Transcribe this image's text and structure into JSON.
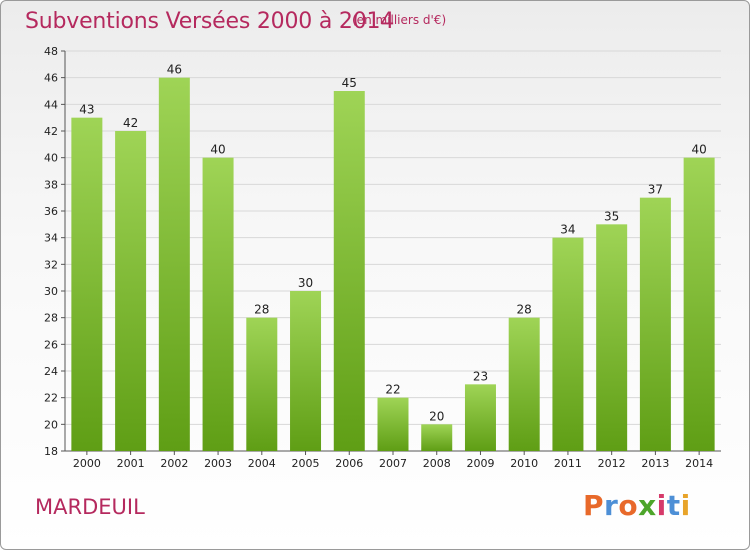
{
  "header": {
    "title": "Subventions Versées 2000 à 2014",
    "unit": "(en milliers d'€)"
  },
  "footer": {
    "commune": "MARDEUIL",
    "brand_letters": [
      "P",
      "r",
      "o",
      "x",
      "i",
      "t",
      "i"
    ]
  },
  "colors": {
    "title": "#b5295e",
    "bar_light": "#9fd456",
    "bar_dark": "#5f9e15",
    "brand": [
      "#e8692a",
      "#4d8fd6",
      "#e8692a",
      "#4da52a",
      "#d63a6a",
      "#4d8fd6",
      "#e8a42a"
    ]
  },
  "chart_data": {
    "type": "bar",
    "title": "Subventions Versées 2000 à 2014",
    "subtitle": "(en milliers d'€)",
    "xlabel": "",
    "ylabel": "",
    "categories": [
      "2000",
      "2001",
      "2002",
      "2003",
      "2004",
      "2005",
      "2006",
      "2007",
      "2008",
      "2009",
      "2010",
      "2011",
      "2012",
      "2013",
      "2014"
    ],
    "values": [
      43,
      42,
      46,
      40,
      28,
      30,
      45,
      22,
      20,
      23,
      28,
      34,
      35,
      37,
      40
    ],
    "ylim": [
      18,
      48
    ],
    "yticks": [
      18,
      20,
      22,
      24,
      26,
      28,
      30,
      32,
      34,
      36,
      38,
      40,
      42,
      44,
      46,
      48
    ],
    "grid": true,
    "data_labels": true
  }
}
